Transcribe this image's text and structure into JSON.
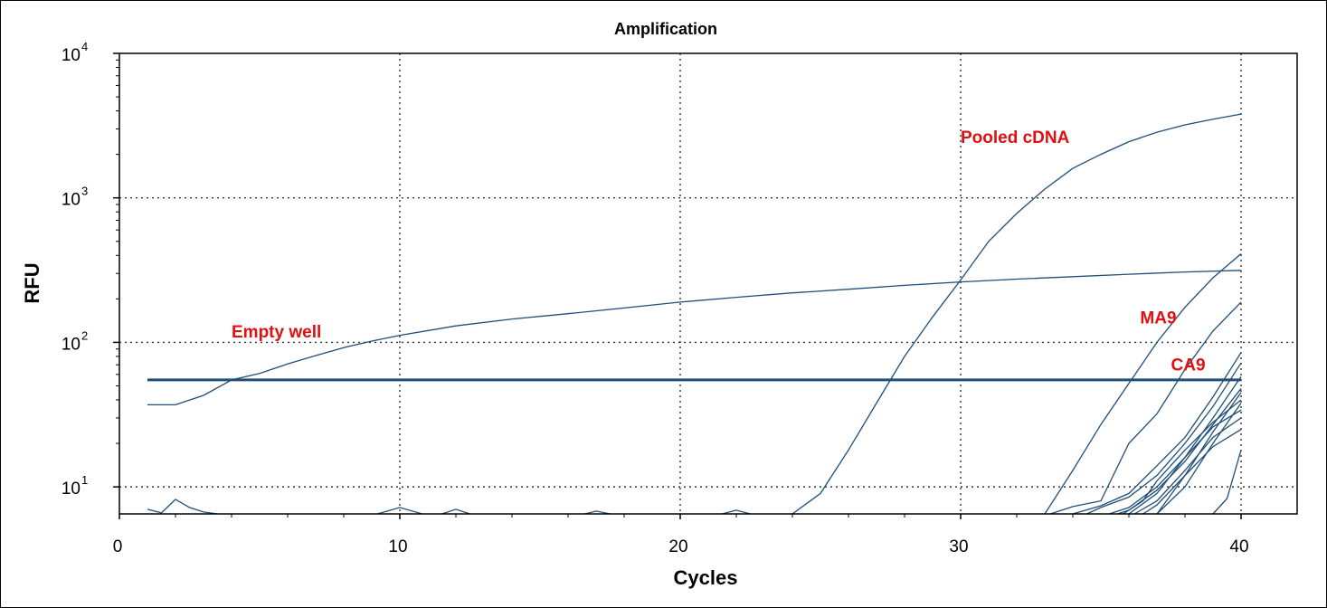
{
  "chart_data": {
    "type": "line",
    "title": "Amplification",
    "xlabel": "Cycles",
    "ylabel": "RFU",
    "xlim": [
      0,
      42
    ],
    "ylim": [
      6.5,
      10000
    ],
    "yscale": "log",
    "grid": true,
    "x_ticks": [
      "0",
      "10",
      "20",
      "30",
      "40"
    ],
    "y_ticks": [
      {
        "value": 10,
        "base": "10",
        "exp": "1"
      },
      {
        "value": 100,
        "base": "10",
        "exp": "2"
      },
      {
        "value": 1000,
        "base": "10",
        "exp": "3"
      },
      {
        "value": 10000,
        "base": "10",
        "exp": "4"
      }
    ],
    "threshold": 55,
    "line_color": "#1f4e79",
    "annotation_color": "#e01010",
    "annotations": [
      {
        "text": "Pooled cDNA",
        "x": 30.0,
        "y": 2400
      },
      {
        "text": "Empty well",
        "x": 4.0,
        "y": 108
      },
      {
        "text": "MA9",
        "x": 36.4,
        "y": 135
      },
      {
        "text": "CA9",
        "x": 37.5,
        "y": 64
      }
    ],
    "series": [
      {
        "x": [
          1,
          2,
          3,
          4,
          5,
          6,
          7,
          8,
          9,
          10,
          12,
          14,
          16,
          18,
          20,
          22,
          24,
          26,
          28,
          30,
          32,
          34,
          36,
          38,
          40
        ],
        "y": [
          37,
          37,
          43,
          55,
          61,
          71,
          81,
          92,
          102,
          112,
          130,
          145,
          158,
          173,
          190,
          205,
          220,
          233,
          248,
          262,
          274,
          285,
          296,
          307,
          315
        ]
      },
      {
        "x": [
          24,
          25,
          26,
          27,
          28,
          29,
          30,
          31,
          32,
          33,
          34,
          35,
          36,
          37,
          38,
          39,
          40
        ],
        "y": [
          6.5,
          9,
          18,
          38,
          80,
          150,
          270,
          500,
          780,
          1150,
          1600,
          2000,
          2450,
          2850,
          3200,
          3500,
          3800
        ]
      },
      {
        "x": [
          33,
          34,
          35,
          36,
          37,
          38,
          39,
          40
        ],
        "y": [
          6.5,
          13,
          27,
          52,
          100,
          175,
          280,
          410
        ]
      },
      {
        "x": [
          33.2,
          34,
          35,
          36,
          37,
          38,
          39,
          40
        ],
        "y": [
          6.5,
          7.3,
          8,
          20,
          32,
          65,
          120,
          190
        ]
      },
      {
        "x": [
          34,
          35,
          36,
          37,
          38,
          39,
          40
        ],
        "y": [
          6.5,
          7.4,
          9,
          14,
          22,
          42,
          85
        ]
      },
      {
        "x": [
          34.5,
          35,
          36,
          37,
          38,
          39,
          40
        ],
        "y": [
          6.5,
          7.2,
          8.5,
          12,
          20,
          36,
          72
        ]
      },
      {
        "x": [
          35.3,
          36,
          37,
          38,
          39,
          40
        ],
        "y": [
          6.5,
          7.2,
          10,
          16,
          30,
          58
        ]
      },
      {
        "x": [
          35.6,
          36,
          37,
          38,
          39,
          40
        ],
        "y": [
          6.5,
          6.9,
          9.5,
          15,
          27,
          48
        ]
      },
      {
        "x": [
          35.8,
          36.5,
          37,
          38,
          39,
          40
        ],
        "y": [
          6.5,
          8,
          11,
          18,
          28,
          40
        ]
      },
      {
        "x": [
          36,
          37,
          38,
          39,
          40
        ],
        "y": [
          6.5,
          9,
          16,
          26,
          34
        ]
      },
      {
        "x": [
          36.2,
          37,
          38,
          39,
          40
        ],
        "y": [
          6.5,
          8,
          13,
          22,
          30
        ]
      },
      {
        "x": [
          36.5,
          37,
          38,
          39,
          40
        ],
        "y": [
          6.5,
          7.5,
          12,
          19,
          25
        ]
      },
      {
        "x": [
          37,
          38,
          39,
          40
        ],
        "y": [
          6.5,
          12,
          24,
          45
        ]
      },
      {
        "x": [
          37,
          38,
          39,
          40
        ],
        "y": [
          6.5,
          10,
          20,
          38
        ]
      },
      {
        "x": [
          39,
          39.5,
          40
        ],
        "y": [
          6.5,
          8.3,
          18
        ]
      },
      {
        "x": [
          1,
          1.5,
          2,
          2.5,
          3,
          3.5
        ],
        "y": [
          7.0,
          6.6,
          8.2,
          7.2,
          6.7,
          6.5
        ]
      },
      {
        "x": [
          9.2,
          10,
          10.8
        ],
        "y": [
          6.5,
          7.2,
          6.5
        ]
      },
      {
        "x": [
          11.5,
          12,
          12.5
        ],
        "y": [
          6.5,
          7.0,
          6.5
        ]
      },
      {
        "x": [
          16.6,
          17,
          17.5
        ],
        "y": [
          6.5,
          6.8,
          6.5
        ]
      },
      {
        "x": [
          21.5,
          22,
          22.5
        ],
        "y": [
          6.5,
          6.9,
          6.5
        ]
      }
    ]
  }
}
